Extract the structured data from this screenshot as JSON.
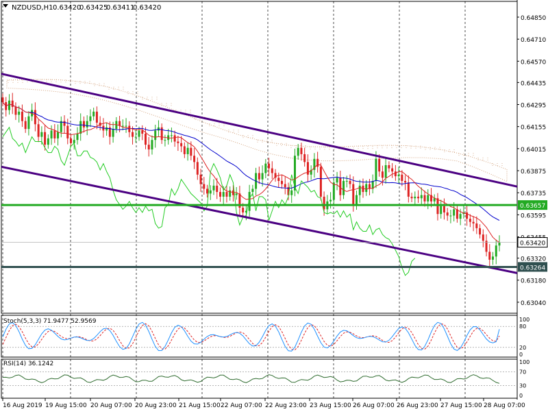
{
  "chart_data": {
    "type": "candlestick",
    "symbol_header": "NZDUSD,H1",
    "ohlc_header": [
      "0.63420",
      "0.63425",
      "0.63411",
      "0.63420"
    ],
    "y_ticks": [
      "0.64850",
      "0.64710",
      "0.64570",
      "0.64435",
      "0.64295",
      "0.64155",
      "0.64015",
      "0.63875",
      "0.63735",
      "0.63595",
      "0.63455",
      "0.63320",
      "0.63180",
      "0.63040"
    ],
    "y_tick_values": [
      0.6485,
      0.6471,
      0.6457,
      0.64435,
      0.64295,
      0.64155,
      0.64015,
      0.63875,
      0.63735,
      0.63595,
      0.63455,
      0.6332,
      0.6318,
      0.6304
    ],
    "ylim": [
      0.6297,
      0.6495
    ],
    "x_ticks": [
      "16 Aug 2019",
      "19 Aug 15:00",
      "20 Aug 07:00",
      "20 Aug 23:00",
      "21 Aug 15:00",
      "22 Aug 07:00",
      "22 Aug 23:00",
      "23 Aug 15:00",
      "26 Aug 07:00",
      "26 Aug 23:00",
      "27 Aug 15:00",
      "28 Aug 07:00"
    ],
    "price_labels": [
      {
        "text": "0.63657",
        "value": 0.63657,
        "color": "#22aa22",
        "kind": "support-green"
      },
      {
        "text": "0.63420",
        "value": 0.6342,
        "color": "#ffffff",
        "kind": "current"
      },
      {
        "text": "0.63264",
        "value": 0.63264,
        "color": "#2f4f4f",
        "kind": "support-dark"
      }
    ],
    "channel": {
      "upper": [
        [
          0,
          0.6449
        ],
        [
          155,
          0.6379
        ]
      ],
      "lower": [
        [
          0,
          0.639
        ],
        [
          155,
          0.6324
        ]
      ]
    },
    "closes": [
      0.6431,
      0.6426,
      0.6432,
      0.6428,
      0.6423,
      0.6425,
      0.6419,
      0.6414,
      0.6422,
      0.6426,
      0.6417,
      0.6409,
      0.6412,
      0.6404,
      0.6408,
      0.6413,
      0.6408,
      0.6412,
      0.6419,
      0.6416,
      0.6408,
      0.6405,
      0.6407,
      0.6411,
      0.6419,
      0.6415,
      0.6419,
      0.6422,
      0.6425,
      0.6418,
      0.6416,
      0.6413,
      0.6415,
      0.6409,
      0.6414,
      0.6419,
      0.6416,
      0.6416,
      0.6416,
      0.6412,
      0.6409,
      0.6409,
      0.6413,
      0.6411,
      0.6404,
      0.6401,
      0.6407,
      0.6413,
      0.6415,
      0.6407,
      0.6407,
      0.641,
      0.641,
      0.6406,
      0.6405,
      0.6403,
      0.6398,
      0.6402,
      0.6397,
      0.6393,
      0.6385,
      0.6379,
      0.6376,
      0.6373,
      0.6375,
      0.6378,
      0.6374,
      0.6371,
      0.6374,
      0.6371,
      0.6375,
      0.6372,
      0.6373,
      0.6364,
      0.6361,
      0.6362,
      0.6374,
      0.6376,
      0.6386,
      0.6382,
      0.6386,
      0.6392,
      0.6389,
      0.6386,
      0.6383,
      0.6381,
      0.6379,
      0.6377,
      0.6372,
      0.6375,
      0.6397,
      0.6402,
      0.6398,
      0.6393,
      0.6385,
      0.6388,
      0.6395,
      0.639,
      0.6371,
      0.6363,
      0.6368,
      0.6369,
      0.638,
      0.6383,
      0.6372,
      0.6381,
      0.6381,
      0.6379,
      0.6366,
      0.6372,
      0.6378,
      0.6374,
      0.6379,
      0.6376,
      0.6381,
      0.6395,
      0.6387,
      0.6383,
      0.6391,
      0.6389,
      0.6387,
      0.6384,
      0.6385,
      0.6381,
      0.638,
      0.6371,
      0.637,
      0.6371,
      0.637,
      0.6372,
      0.6368,
      0.6372,
      0.6368,
      0.637,
      0.636,
      0.6365,
      0.6361,
      0.6359,
      0.6359,
      0.6363,
      0.6357,
      0.636,
      0.6361,
      0.6357,
      0.6355,
      0.6354,
      0.6351,
      0.6347,
      0.6343,
      0.6336,
      0.6331,
      0.6333,
      0.634,
      0.6342
    ],
    "indicators": {
      "stoch": {
        "label": "Stoch(5,3,3) 71.9477 52.9569",
        "levels": [
          "100",
          "80",
          "20",
          "0"
        ],
        "last_main": 71.9477,
        "last_signal": 52.9569
      },
      "rsi": {
        "label": "RSI(14) 36.1242",
        "levels": [
          "100",
          "70",
          "30",
          "0"
        ],
        "last": 36.1242
      }
    },
    "colors": {
      "bull": "#22aa22",
      "bear": "#dd2222",
      "channel": "#4b0082",
      "kijun": "#0000cc",
      "tenkan": "#dd2222",
      "chikou": "#22cc22",
      "cloud": "#d2a07a",
      "support_green": "#22aa22",
      "support_dark": "#2f4f4f",
      "stoch_signal": "#dd2222",
      "stoch_main": "#1e90ff",
      "rsi": "#2e6b2e"
    }
  }
}
